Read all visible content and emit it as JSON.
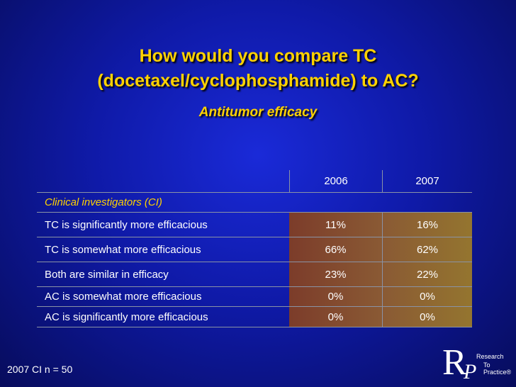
{
  "title": {
    "line1": "How would you compare TC",
    "line2": "(docetaxel/cyclophosphamide) to AC?"
  },
  "subtitle": "Antitumor efficacy",
  "table": {
    "columns": [
      "2006",
      "2007"
    ],
    "section_label": "Clinical investigators (CI)",
    "rows": [
      {
        "label": "TC is significantly more efficacious",
        "v2006": "11%",
        "v2007": "16%"
      },
      {
        "label": "TC is somewhat more efficacious",
        "v2006": "66%",
        "v2007": "62%"
      },
      {
        "label": "Both are similar in efficacy",
        "v2006": "23%",
        "v2007": "22%"
      },
      {
        "label": "AC is somewhat more efficacious",
        "v2006": "0%",
        "v2007": "0%"
      },
      {
        "label": "AC is significantly more efficacious",
        "v2006": "0%",
        "v2007": "0%"
      }
    ]
  },
  "footnote": "2007 CI n = 50",
  "logo": {
    "letter_r": "R",
    "letter_p": "P",
    "line1": "Research",
    "line2": "To Practice®"
  },
  "colors": {
    "background": "#1020b8",
    "title": "#ffd200",
    "cell_2006": "#7c3c2a",
    "cell_2007": "#94752f"
  }
}
